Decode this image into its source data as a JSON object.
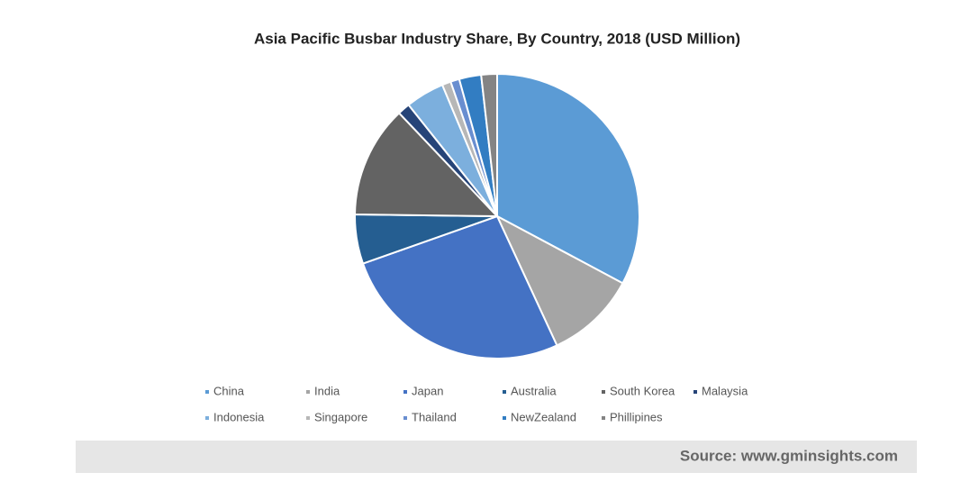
{
  "chart_data": {
    "type": "pie",
    "title": "Asia Pacific Busbar Industry Share, By Country, 2018 (USD Million)",
    "categories": [
      "China",
      "India",
      "Japan",
      "Australia",
      "South Korea",
      "Malaysia",
      "Indonesia",
      "Singapore",
      "Thailand",
      "NewZealand",
      "Phillipines"
    ],
    "values": [
      32.8,
      10.3,
      26.5,
      5.6,
      12.7,
      1.4,
      4.4,
      1.0,
      1.0,
      2.5,
      1.8
    ],
    "colors": [
      "#5b9bd5",
      "#a5a5a5",
      "#4472c4",
      "#255e91",
      "#636363",
      "#264478",
      "#7cafdd",
      "#b7b7b7",
      "#698ed0",
      "#327dc2",
      "#848484"
    ]
  },
  "source": "Source: www.gminsights.com"
}
